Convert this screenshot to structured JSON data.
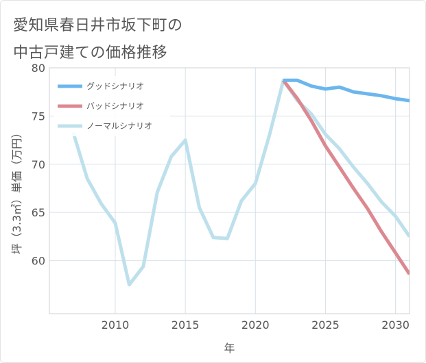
{
  "chart_data": {
    "type": "line",
    "title": "愛知県春日井市坂下町の中古戸建ての価格推移",
    "title_lines": [
      "愛知県春日井市坂下町の",
      "中古戸建ての価格推移"
    ],
    "xlabel": "年",
    "ylabel": "坪（3.3㎡）単価（万円）",
    "xlim": [
      2005.3,
      2031
    ],
    "ylim": [
      54.5,
      80
    ],
    "x_ticks": [
      2010,
      2015,
      2020,
      2025,
      2030
    ],
    "y_ticks": [
      60,
      65,
      70,
      75,
      80
    ],
    "grid": true,
    "legend_position": "top-left",
    "series": [
      {
        "name": "グッドシナリオ",
        "color": "#6cb6ee",
        "x": [
          2022,
          2023,
          2024,
          2025,
          2026,
          2027,
          2028,
          2029,
          2030,
          2031
        ],
        "values": [
          78.7,
          78.7,
          78.1,
          77.8,
          78.0,
          77.5,
          77.3,
          77.1,
          76.8,
          76.6
        ]
      },
      {
        "name": "バッドシナリオ",
        "color": "#dc8891",
        "x": [
          2022,
          2023,
          2024,
          2025,
          2026,
          2027,
          2028,
          2029,
          2030,
          2031
        ],
        "values": [
          78.7,
          76.8,
          74.5,
          71.9,
          69.7,
          67.5,
          65.4,
          63.0,
          60.8,
          58.6
        ]
      },
      {
        "name": "ノーマルシナリオ",
        "color": "#bde0ec",
        "x": [
          2007,
          2008,
          2009,
          2010,
          2011,
          2012,
          2013,
          2014,
          2015,
          2016,
          2017,
          2018,
          2019,
          2020,
          2021,
          2022,
          2023,
          2024,
          2025,
          2026,
          2027,
          2028,
          2029,
          2030,
          2031
        ],
        "values": [
          73.3,
          68.5,
          65.9,
          63.9,
          57.5,
          59.4,
          67.1,
          70.8,
          72.5,
          65.5,
          62.4,
          62.3,
          66.2,
          68.0,
          73.0,
          78.7,
          76.6,
          75.2,
          73.1,
          71.6,
          69.7,
          68.0,
          66.1,
          64.6,
          62.5
        ]
      }
    ]
  }
}
